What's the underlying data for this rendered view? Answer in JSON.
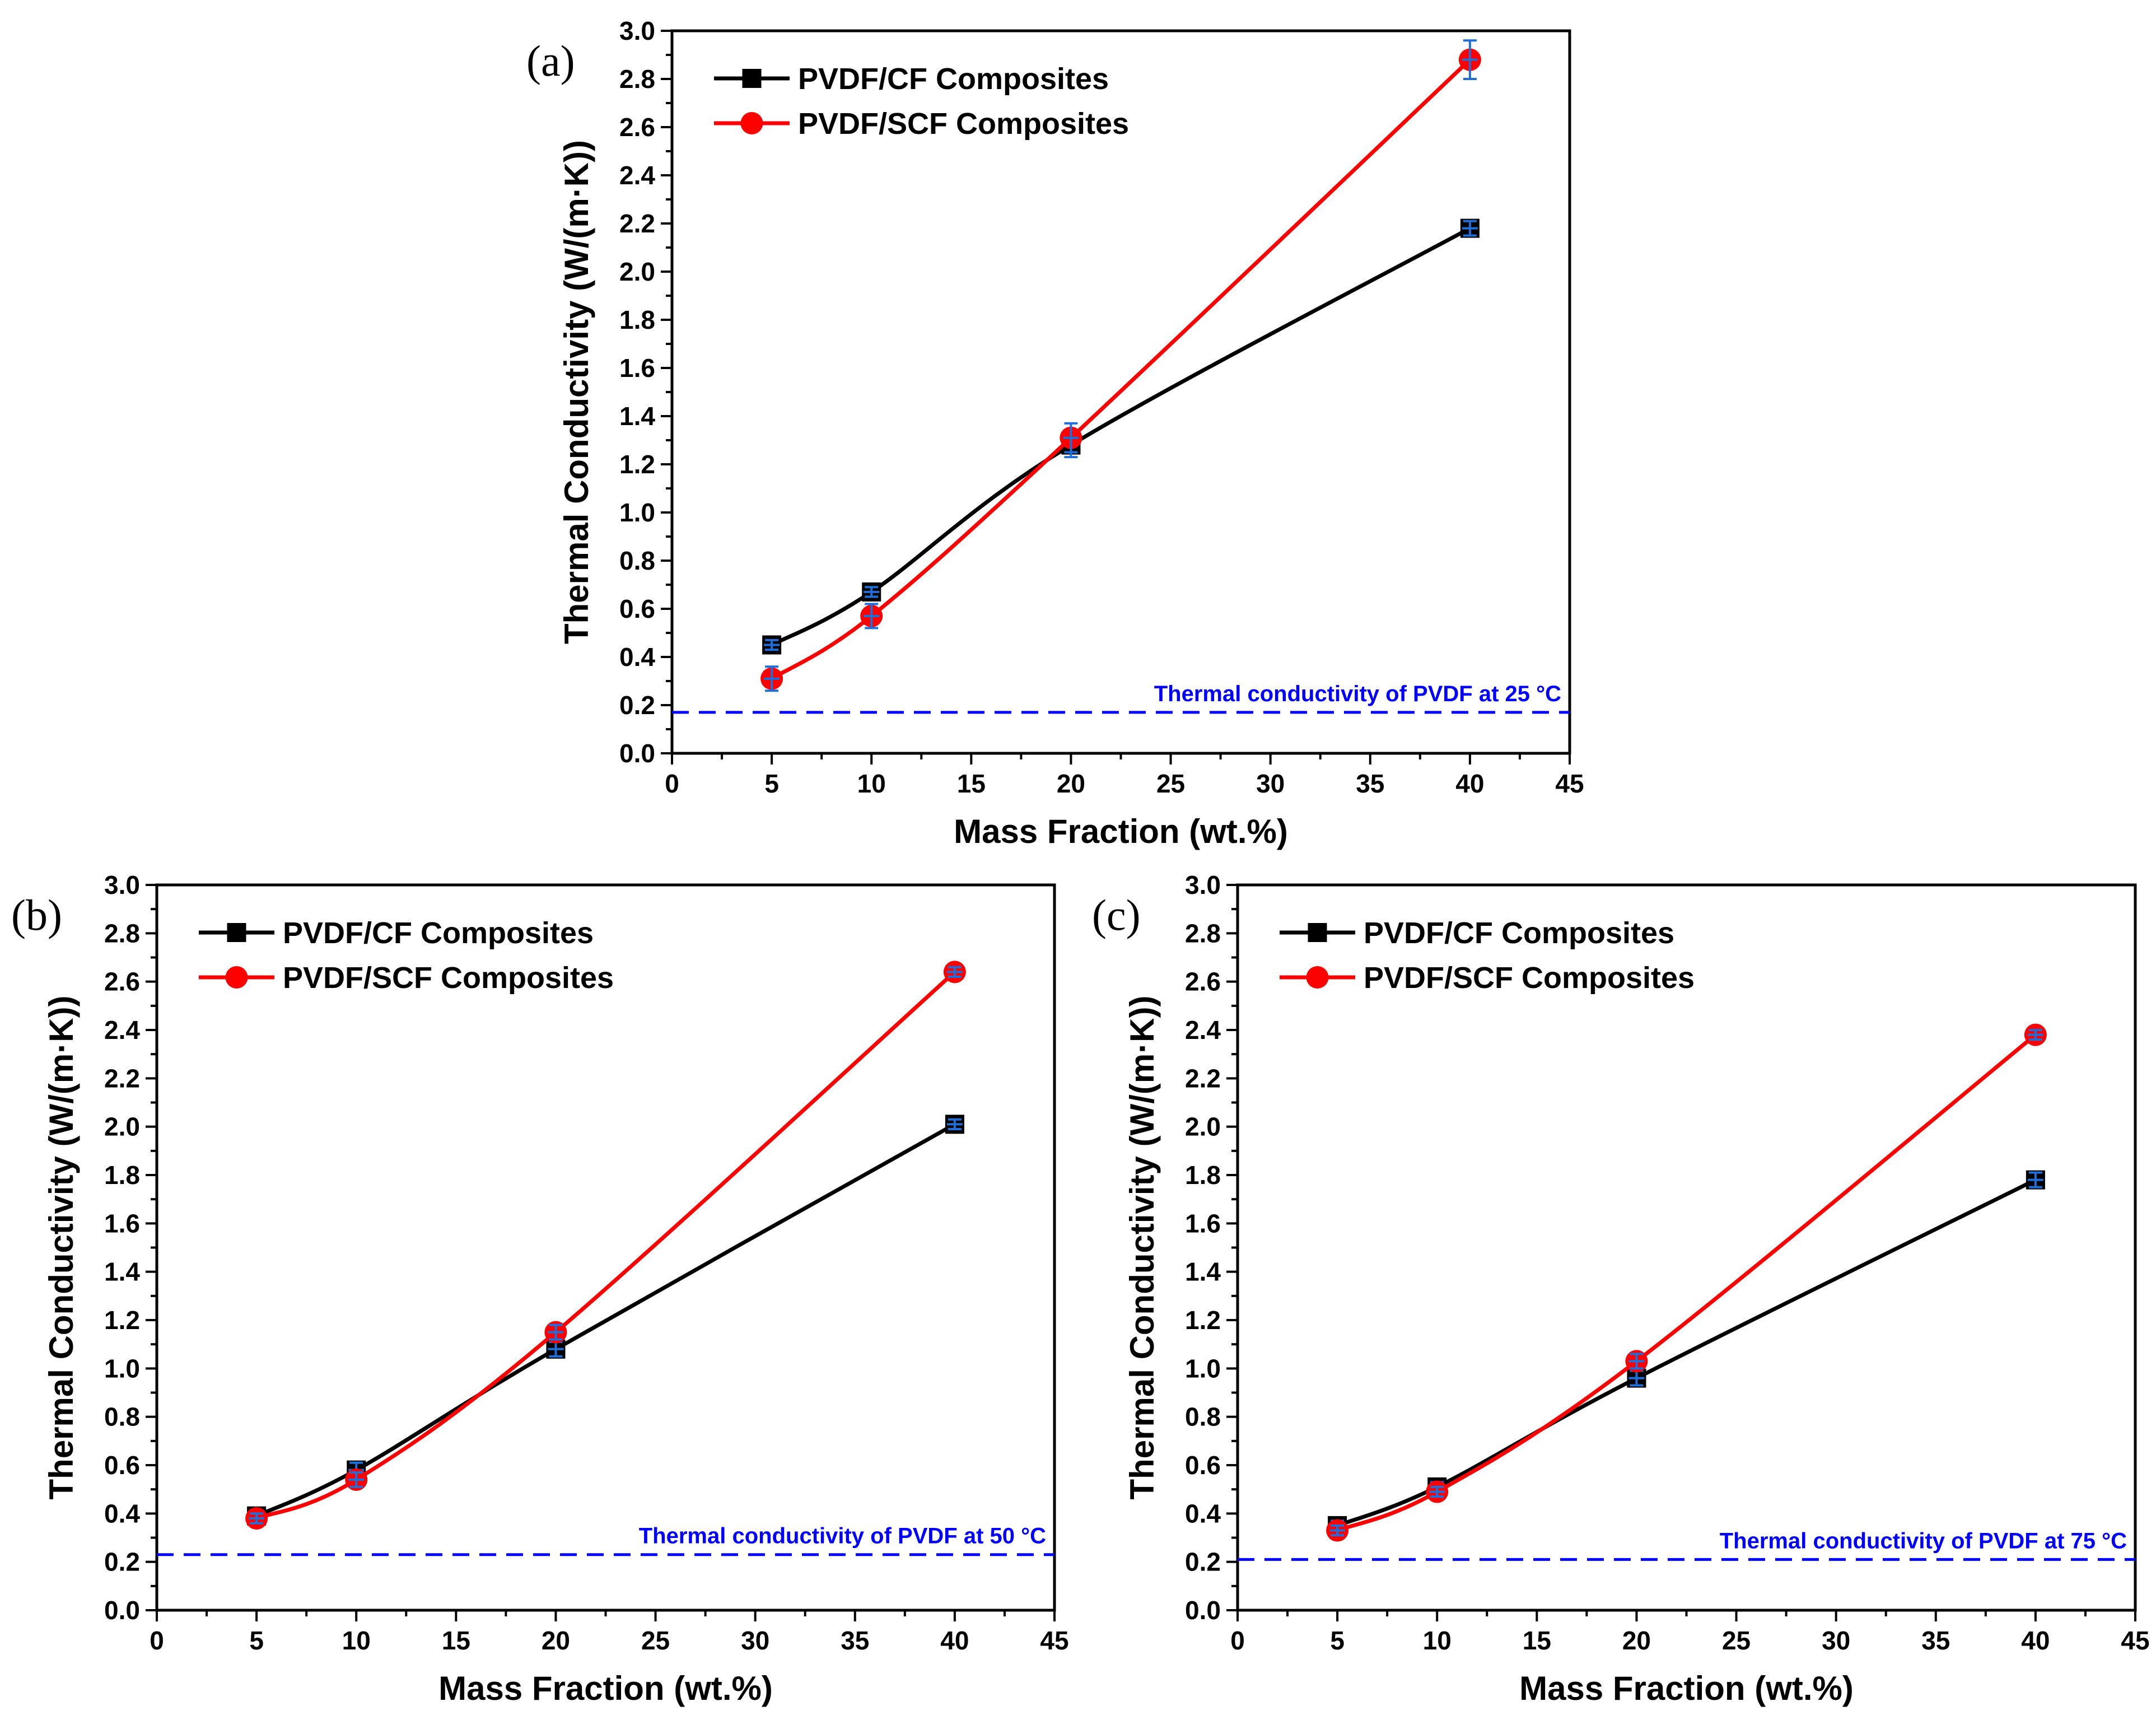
{
  "chart_data": [
    {
      "panel_label": "(a)",
      "type": "line",
      "xlabel": "Mass Fraction (wt.%)",
      "ylabel": "Thermal Conductivity (W/(m·K))",
      "xlim": [
        0,
        45
      ],
      "ylim": [
        0,
        3.0
      ],
      "xticks": [
        "0",
        "5",
        "10",
        "15",
        "20",
        "25",
        "30",
        "35",
        "40",
        "45"
      ],
      "yticks": [
        "0.0",
        "0.2",
        "0.4",
        "0.6",
        "0.8",
        "1.0",
        "1.2",
        "1.4",
        "1.6",
        "1.8",
        "2.0",
        "2.2",
        "2.4",
        "2.6",
        "2.8",
        "3.0"
      ],
      "x": [
        5,
        10,
        20,
        40
      ],
      "series": [
        {
          "name": "PVDF/CF Composites",
          "marker": "square",
          "color": "#000000",
          "values": [
            0.45,
            0.67,
            1.28,
            2.18
          ],
          "errors": [
            0.02,
            0.02,
            0.05,
            0.03
          ]
        },
        {
          "name": "PVDF/SCF Composites",
          "marker": "circle",
          "color": "#ff0000",
          "values": [
            0.31,
            0.57,
            1.31,
            2.88
          ],
          "errors": [
            0.05,
            0.05,
            0.06,
            0.08
          ]
        }
      ],
      "reference_line": {
        "value": 0.17,
        "label": "Thermal conductivity of PVDF at 25 °C",
        "color": "#0000ff"
      },
      "error_bar_color": "#1e6fd9",
      "legend_position": "top-left"
    },
    {
      "panel_label": "(b)",
      "type": "line",
      "xlabel": "Mass Fraction (wt.%)",
      "ylabel": "Thermal Conductivity (W/(m·K))",
      "xlim": [
        0,
        45
      ],
      "ylim": [
        0,
        3.0
      ],
      "xticks": [
        "0",
        "5",
        "10",
        "15",
        "20",
        "25",
        "30",
        "35",
        "40",
        "45"
      ],
      "yticks": [
        "0.0",
        "0.2",
        "0.4",
        "0.6",
        "0.8",
        "1.0",
        "1.2",
        "1.4",
        "1.6",
        "1.8",
        "2.0",
        "2.2",
        "2.4",
        "2.6",
        "2.8",
        "3.0"
      ],
      "x": [
        5,
        10,
        20,
        40
      ],
      "series": [
        {
          "name": "PVDF/CF Composites",
          "marker": "square",
          "color": "#000000",
          "values": [
            0.39,
            0.58,
            1.08,
            2.01
          ],
          "errors": [
            0.02,
            0.03,
            0.03,
            0.02
          ]
        },
        {
          "name": "PVDF/SCF Composites",
          "marker": "circle",
          "color": "#ff0000",
          "values": [
            0.38,
            0.54,
            1.15,
            2.64
          ],
          "errors": [
            0.02,
            0.03,
            0.03,
            0.02
          ]
        }
      ],
      "reference_line": {
        "value": 0.23,
        "label": "Thermal conductivity of PVDF at 50 °C",
        "color": "#0000ff"
      },
      "error_bar_color": "#1e6fd9",
      "legend_position": "top-left"
    },
    {
      "panel_label": "(c)",
      "type": "line",
      "xlabel": "Mass Fraction (wt.%)",
      "ylabel": "Thermal Conductivity (W/(m·K))",
      "xlim": [
        0,
        45
      ],
      "ylim": [
        0,
        3.0
      ],
      "xticks": [
        "0",
        "5",
        "10",
        "15",
        "20",
        "25",
        "30",
        "35",
        "40",
        "45"
      ],
      "yticks": [
        "0.0",
        "0.2",
        "0.4",
        "0.6",
        "0.8",
        "1.0",
        "1.2",
        "1.4",
        "1.6",
        "1.8",
        "2.0",
        "2.2",
        "2.4",
        "2.6",
        "2.8",
        "3.0"
      ],
      "x": [
        5,
        10,
        20,
        40
      ],
      "series": [
        {
          "name": "PVDF/CF Composites",
          "marker": "square",
          "color": "#000000",
          "values": [
            0.35,
            0.51,
            0.96,
            1.78
          ],
          "errors": [
            0.02,
            0.02,
            0.03,
            0.03
          ]
        },
        {
          "name": "PVDF/SCF Composites",
          "marker": "circle",
          "color": "#ff0000",
          "values": [
            0.33,
            0.49,
            1.03,
            2.38
          ],
          "errors": [
            0.02,
            0.02,
            0.03,
            0.02
          ]
        }
      ],
      "reference_line": {
        "value": 0.21,
        "label": "Thermal conductivity of PVDF at 75 °C",
        "color": "#0000ff"
      },
      "error_bar_color": "#1e6fd9",
      "legend_position": "top-left"
    }
  ]
}
